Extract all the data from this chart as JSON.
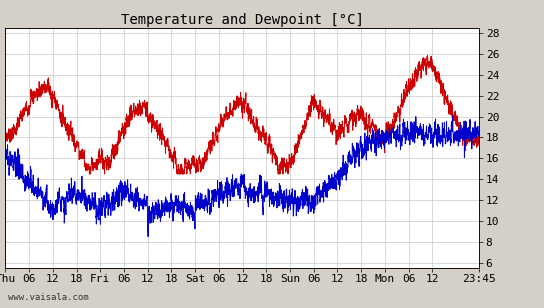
{
  "title": "Temperature and Dewpoint [°C]",
  "ylabel_right_ticks": [
    6,
    8,
    10,
    12,
    14,
    16,
    18,
    20,
    22,
    24,
    26,
    28
  ],
  "ylim": [
    5.5,
    28.5
  ],
  "x_tick_labels": [
    "Thu",
    "06",
    "12",
    "18",
    "Fri",
    "06",
    "12",
    "18",
    "Sat",
    "06",
    "12",
    "18",
    "Sun",
    "06",
    "12",
    "18",
    "Mon",
    "06",
    "12",
    "23:45"
  ],
  "background_color": "#d4d0c8",
  "plot_bg_color": "#ffffff",
  "grid_color": "#c8c8c8",
  "temp_color": "#cc0000",
  "dewpoint_color": "#0000cc",
  "line_width": 0.7,
  "title_fontsize": 10,
  "tick_fontsize": 8,
  "watermark": "www.vaisala.com",
  "n_points": 2880,
  "tick_hours": [
    0,
    6,
    12,
    18,
    24,
    30,
    36,
    42,
    48,
    54,
    60,
    66,
    72,
    78,
    84,
    90,
    96,
    102,
    108,
    119.75
  ],
  "total_hours": 119.75
}
